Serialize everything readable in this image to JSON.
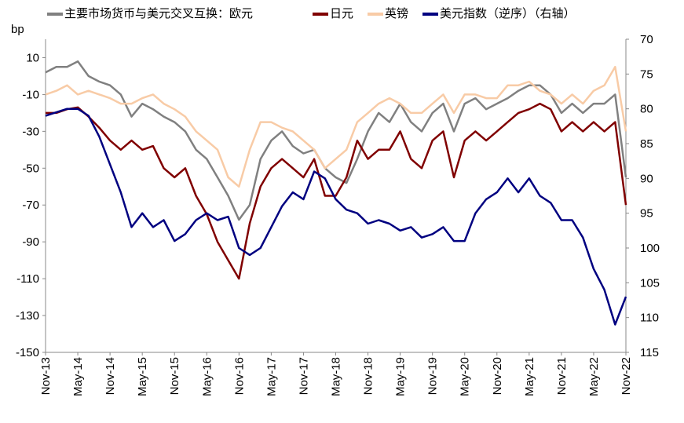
{
  "chart_data": {
    "type": "line",
    "y_label": "bp",
    "categories": [
      "Nov-13",
      null,
      null,
      "May-14",
      null,
      null,
      "Nov-14",
      null,
      null,
      "May-15",
      null,
      null,
      "Nov-15",
      null,
      null,
      "May-16",
      null,
      null,
      "Nov-16",
      null,
      null,
      "May-17",
      null,
      null,
      "Nov-17",
      null,
      null,
      "May-18",
      null,
      null,
      "Nov-18",
      null,
      null,
      "May-19",
      null,
      null,
      "Nov-19",
      null,
      null,
      "May-20",
      null,
      null,
      "Nov-20",
      null,
      null,
      "May-21",
      null,
      null,
      "Nov-21",
      null,
      null,
      "May-22",
      null,
      null,
      "Nov-22"
    ],
    "series": [
      {
        "name": "主要市场货币与美元交叉互换：欧元",
        "color": "#808080",
        "values": [
          2,
          5,
          5,
          8,
          0,
          -3,
          -5,
          -10,
          -22,
          -15,
          -18,
          -22,
          -25,
          -30,
          -40,
          -45,
          -55,
          -65,
          -78,
          -70,
          -45,
          -35,
          -30,
          -38,
          -42,
          -40,
          -50,
          -55,
          -58,
          -45,
          -30,
          -20,
          -25,
          -15,
          -25,
          -30,
          -20,
          -15,
          -30,
          -15,
          -12,
          -18,
          -15,
          -12,
          -8,
          -5,
          -5,
          -10,
          -20,
          -15,
          -20,
          -15,
          -15,
          -10,
          -55
        ]
      },
      {
        "name": "日元",
        "color": "#800000",
        "values": [
          -20,
          -20,
          -18,
          -17,
          -22,
          -28,
          -35,
          -40,
          -35,
          -40,
          -38,
          -50,
          -55,
          -50,
          -65,
          -75,
          -90,
          -100,
          -110,
          -80,
          -60,
          -50,
          -45,
          -50,
          -55,
          -45,
          -65,
          -65,
          -55,
          -35,
          -45,
          -40,
          -40,
          -30,
          -45,
          -50,
          -35,
          -30,
          -55,
          -35,
          -30,
          -35,
          -30,
          -25,
          -20,
          -18,
          -15,
          -18,
          -30,
          -25,
          -30,
          -25,
          -30,
          -25,
          -70
        ]
      },
      {
        "name": "英镑",
        "color": "#f8cba6",
        "values": [
          -10,
          -8,
          -5,
          -10,
          -8,
          -10,
          -12,
          -15,
          -15,
          -12,
          -10,
          -15,
          -18,
          -22,
          -30,
          -35,
          -40,
          -55,
          -60,
          -40,
          -25,
          -25,
          -28,
          -30,
          -35,
          -40,
          -50,
          -45,
          -40,
          -25,
          -20,
          -15,
          -12,
          -15,
          -20,
          -20,
          -15,
          -10,
          -20,
          -10,
          -10,
          -12,
          -12,
          -5,
          -5,
          -3,
          -8,
          -10,
          -15,
          -10,
          -15,
          -8,
          -5,
          5,
          -30
        ]
      },
      {
        "name": "美元指数（逆序）（右轴）",
        "color": "#000080",
        "axis": "y2",
        "values": [
          81,
          80.5,
          80,
          80,
          81,
          84,
          88,
          92,
          97,
          95,
          97,
          96,
          99,
          98,
          96,
          95,
          96,
          95.5,
          100,
          101,
          100,
          97,
          94,
          92,
          93,
          89,
          90,
          93,
          94.5,
          95,
          96.5,
          96,
          96.5,
          97.5,
          97,
          98.5,
          98,
          97,
          99,
          99,
          95,
          93,
          92,
          90,
          92,
          90,
          92.5,
          93.5,
          96,
          96,
          98.5,
          103,
          106,
          111,
          107
        ]
      }
    ],
    "ylim": [
      -150,
      20
    ],
    "yticks": [
      10,
      -10,
      -30,
      -50,
      -70,
      -90,
      -110,
      -130,
      -150
    ],
    "y2lim": [
      115,
      70
    ],
    "y2ticks": [
      70,
      75,
      80,
      85,
      90,
      95,
      100,
      105,
      110,
      115
    ],
    "negative_tick_color": "#ff0000",
    "legend": "top"
  }
}
